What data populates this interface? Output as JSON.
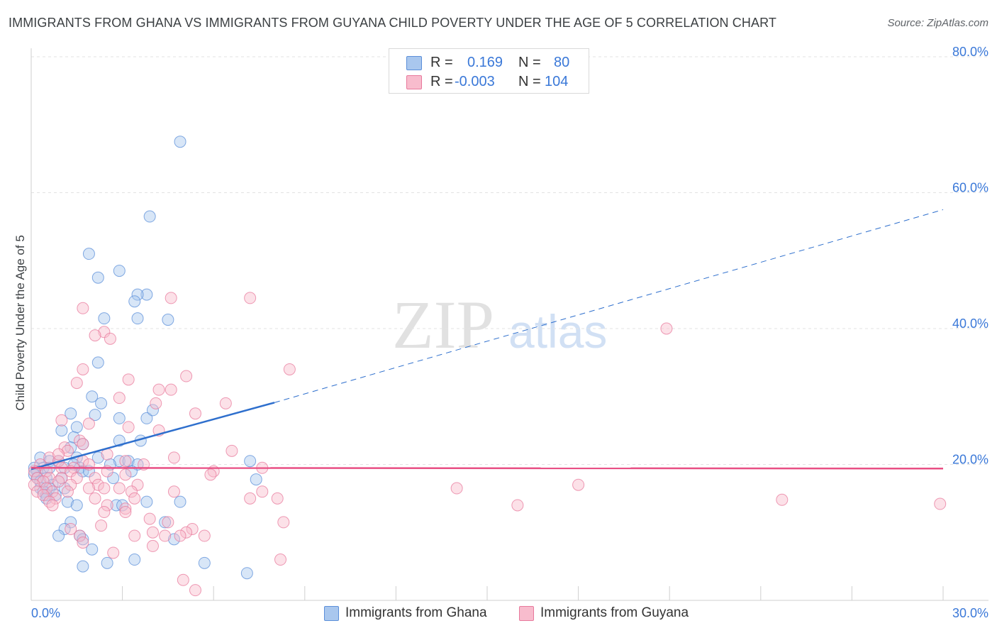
{
  "title": "IMMIGRANTS FROM GHANA VS IMMIGRANTS FROM GUYANA CHILD POVERTY UNDER THE AGE OF 5 CORRELATION CHART",
  "source": "Source: ZipAtlas.com",
  "watermark": {
    "zip": "ZIP",
    "atlas": "atlas"
  },
  "legend": {
    "rows": [
      {
        "r_label": "R =",
        "r_value": "0.169",
        "n_label": "N =",
        "n_value": "80",
        "color": "#a9c7ee"
      },
      {
        "r_label": "R =",
        "r_value": "-0.003",
        "n_label": "N =",
        "n_value": "104",
        "color": "#f8bccd"
      }
    ]
  },
  "bottom_legend": [
    {
      "label": "Immigrants from Ghana",
      "color": "#a9c7ee"
    },
    {
      "label": "Immigrants from Guyana",
      "color": "#f8bccd"
    }
  ],
  "chart_data": {
    "type": "scatter",
    "ylabel": "Child Poverty Under the Age of 5",
    "xlabel": "",
    "xlim": [
      0,
      30
    ],
    "ylim": [
      0,
      80
    ],
    "x_tick_labels": [
      "0.0%",
      "30.0%"
    ],
    "y_tick_labels": [
      {
        "value": 20,
        "label": "20.0%"
      },
      {
        "value": 40,
        "label": "40.0%"
      },
      {
        "value": 60,
        "label": "60.0%"
      },
      {
        "value": 80,
        "label": "80.0%"
      }
    ],
    "grid": true,
    "legend_position": "top-center",
    "series": [
      {
        "name": "Immigrants from Ghana",
        "color": "#5b8fd9",
        "fill": "#a9c7ee",
        "trend": {
          "x0": 0,
          "y0": 19.3,
          "x1": 8,
          "y1": 29.1,
          "extend_to_x": 30,
          "extend_to_y": 57.5,
          "line_color": "#2e6fcd"
        },
        "points": [
          [
            4.9,
            67.5
          ],
          [
            3.9,
            56.5
          ],
          [
            1.9,
            51.0
          ],
          [
            2.9,
            48.5
          ],
          [
            2.2,
            47.5
          ],
          [
            3.8,
            45.0
          ],
          [
            3.5,
            45.0
          ],
          [
            3.4,
            44.0
          ],
          [
            2.4,
            41.5
          ],
          [
            3.5,
            41.5
          ],
          [
            4.5,
            41.3
          ],
          [
            2.2,
            35.0
          ],
          [
            2.0,
            30.0
          ],
          [
            2.3,
            29.0
          ],
          [
            1.3,
            27.5
          ],
          [
            2.1,
            27.3
          ],
          [
            2.9,
            26.8
          ],
          [
            3.8,
            26.8
          ],
          [
            4.0,
            28.0
          ],
          [
            1.5,
            25.5
          ],
          [
            1.0,
            25.0
          ],
          [
            1.4,
            24.0
          ],
          [
            2.9,
            23.5
          ],
          [
            3.6,
            23.5
          ],
          [
            1.7,
            23.0
          ],
          [
            1.3,
            22.5
          ],
          [
            1.5,
            21.0
          ],
          [
            0.3,
            21.0
          ],
          [
            0.6,
            20.5
          ],
          [
            0.9,
            20.5
          ],
          [
            1.4,
            20.0
          ],
          [
            2.2,
            21.0
          ],
          [
            2.9,
            20.5
          ],
          [
            3.2,
            20.5
          ],
          [
            3.5,
            20.0
          ],
          [
            7.2,
            20.5
          ],
          [
            2.6,
            20.0
          ],
          [
            0.4,
            19.5
          ],
          [
            0.1,
            19.5
          ],
          [
            0.2,
            19.0
          ],
          [
            0.6,
            19.5
          ],
          [
            1.1,
            19.5
          ],
          [
            1.6,
            19.5
          ],
          [
            1.7,
            19.0
          ],
          [
            1.9,
            19.0
          ],
          [
            3.3,
            19.0
          ],
          [
            0.1,
            18.5
          ],
          [
            0.2,
            18.0
          ],
          [
            0.5,
            18.0
          ],
          [
            1.0,
            18.0
          ],
          [
            2.7,
            18.0
          ],
          [
            7.4,
            17.8
          ],
          [
            0.3,
            17.5
          ],
          [
            0.7,
            17.0
          ],
          [
            0.3,
            16.5
          ],
          [
            0.6,
            16.5
          ],
          [
            1.1,
            16.5
          ],
          [
            0.4,
            16.0
          ],
          [
            0.8,
            15.5
          ],
          [
            0.5,
            15.5
          ],
          [
            0.5,
            15.0
          ],
          [
            1.2,
            14.5
          ],
          [
            3.8,
            14.5
          ],
          [
            4.9,
            14.5
          ],
          [
            1.5,
            14.0
          ],
          [
            2.8,
            14.0
          ],
          [
            3.0,
            14.0
          ],
          [
            4.4,
            11.5
          ],
          [
            1.3,
            11.5
          ],
          [
            1.1,
            10.5
          ],
          [
            0.9,
            9.5
          ],
          [
            1.6,
            9.5
          ],
          [
            1.7,
            9.0
          ],
          [
            4.7,
            9.0
          ],
          [
            2.0,
            7.5
          ],
          [
            1.7,
            5.0
          ],
          [
            2.5,
            5.5
          ],
          [
            3.4,
            6.0
          ],
          [
            5.7,
            5.5
          ],
          [
            7.1,
            4.0
          ]
        ]
      },
      {
        "name": "Immigrants from Guyana",
        "color": "#e8799c",
        "fill": "#f8bccd",
        "trend": {
          "x0": 0,
          "y0": 19.5,
          "x1": 30,
          "y1": 19.4,
          "line_color": "#e84f84"
        },
        "points": [
          [
            7.2,
            44.5
          ],
          [
            4.6,
            44.5
          ],
          [
            1.7,
            43.0
          ],
          [
            2.4,
            39.5
          ],
          [
            2.1,
            39.0
          ],
          [
            2.6,
            38.5
          ],
          [
            20.9,
            40.0
          ],
          [
            8.5,
            34.0
          ],
          [
            1.7,
            34.0
          ],
          [
            5.1,
            33.0
          ],
          [
            3.2,
            32.5
          ],
          [
            1.5,
            32.0
          ],
          [
            4.2,
            31.0
          ],
          [
            4.6,
            31.0
          ],
          [
            2.9,
            29.8
          ],
          [
            4.1,
            29.0
          ],
          [
            6.4,
            29.0
          ],
          [
            5.4,
            27.5
          ],
          [
            1.0,
            26.5
          ],
          [
            1.9,
            26.0
          ],
          [
            3.2,
            25.5
          ],
          [
            4.2,
            25.0
          ],
          [
            1.6,
            23.5
          ],
          [
            1.7,
            23.0
          ],
          [
            1.1,
            22.5
          ],
          [
            1.2,
            22.0
          ],
          [
            6.6,
            22.0
          ],
          [
            2.5,
            21.5
          ],
          [
            4.7,
            21.0
          ],
          [
            0.6,
            21.0
          ],
          [
            1.7,
            20.5
          ],
          [
            0.9,
            20.5
          ],
          [
            3.1,
            20.5
          ],
          [
            3.7,
            20.0
          ],
          [
            0.3,
            20.0
          ],
          [
            1.4,
            19.5
          ],
          [
            1.0,
            19.5
          ],
          [
            6.0,
            19.0
          ],
          [
            7.6,
            19.5
          ],
          [
            0.1,
            19.0
          ],
          [
            0.5,
            19.0
          ],
          [
            1.3,
            19.0
          ],
          [
            2.5,
            19.0
          ],
          [
            3.1,
            18.5
          ],
          [
            5.9,
            18.5
          ],
          [
            0.2,
            18.0
          ],
          [
            0.6,
            18.0
          ],
          [
            1.0,
            18.0
          ],
          [
            1.5,
            18.0
          ],
          [
            2.1,
            18.0
          ],
          [
            0.4,
            17.5
          ],
          [
            0.9,
            17.5
          ],
          [
            1.3,
            17.0
          ],
          [
            2.2,
            17.0
          ],
          [
            3.5,
            17.0
          ],
          [
            0.1,
            17.0
          ],
          [
            0.5,
            16.5
          ],
          [
            1.9,
            16.5
          ],
          [
            2.4,
            16.5
          ],
          [
            3.3,
            16.0
          ],
          [
            14.0,
            16.5
          ],
          [
            18.0,
            17.0
          ],
          [
            0.2,
            16.0
          ],
          [
            0.7,
            16.0
          ],
          [
            1.2,
            16.0
          ],
          [
            4.7,
            16.0
          ],
          [
            7.6,
            16.0
          ],
          [
            0.4,
            15.5
          ],
          [
            0.8,
            15.0
          ],
          [
            2.1,
            15.0
          ],
          [
            3.4,
            15.0
          ],
          [
            0.6,
            14.5
          ],
          [
            7.2,
            15.0
          ],
          [
            8.1,
            15.0
          ],
          [
            24.7,
            14.8
          ],
          [
            29.9,
            14.2
          ],
          [
            16.0,
            14.0
          ],
          [
            0.7,
            14.0
          ],
          [
            2.5,
            14.0
          ],
          [
            3.1,
            13.5
          ],
          [
            2.4,
            13.0
          ],
          [
            3.1,
            13.0
          ],
          [
            3.9,
            12.0
          ],
          [
            4.5,
            11.5
          ],
          [
            8.3,
            11.5
          ],
          [
            2.3,
            11.0
          ],
          [
            5.3,
            10.5
          ],
          [
            1.3,
            10.5
          ],
          [
            4.0,
            10.0
          ],
          [
            5.1,
            10.0
          ],
          [
            5.7,
            9.5
          ],
          [
            4.9,
            9.5
          ],
          [
            3.4,
            9.5
          ],
          [
            1.6,
            9.5
          ],
          [
            4.4,
            9.5
          ],
          [
            1.7,
            8.5
          ],
          [
            4.0,
            8.0
          ],
          [
            2.7,
            7.0
          ],
          [
            8.2,
            6.0
          ],
          [
            5.0,
            3.0
          ],
          [
            5.4,
            1.5
          ],
          [
            2.9,
            16.5
          ],
          [
            0.9,
            21.5
          ],
          [
            1.9,
            20.0
          ]
        ]
      }
    ]
  }
}
